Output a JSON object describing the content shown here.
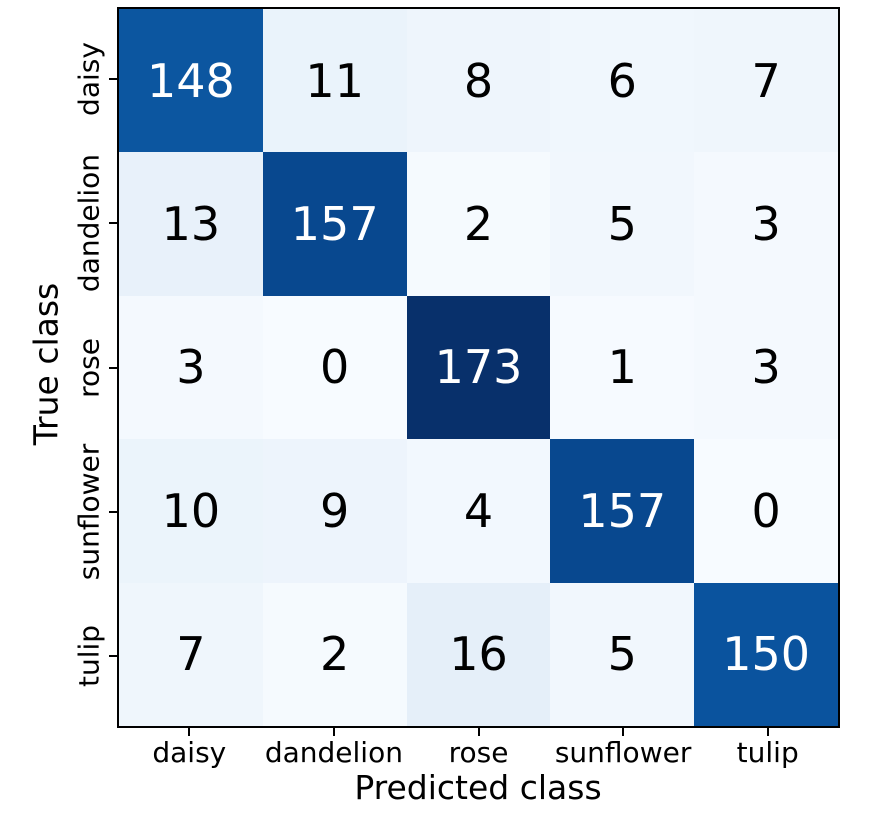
{
  "figure": {
    "background": "#ffffff",
    "axis_color": "#000000"
  },
  "chart_data": {
    "type": "heatmap",
    "title": "",
    "xlabel": "Predicted class",
    "ylabel": "True class",
    "categories": [
      "daisy",
      "dandelion",
      "rose",
      "sunflower",
      "tulip"
    ],
    "rows": [
      [
        148,
        11,
        8,
        6,
        7
      ],
      [
        13,
        157,
        2,
        5,
        3
      ],
      [
        3,
        0,
        173,
        1,
        3
      ],
      [
        10,
        9,
        4,
        157,
        0
      ],
      [
        7,
        2,
        16,
        5,
        150
      ]
    ],
    "vmin": 0,
    "vmax": 173,
    "colormap": "Blues",
    "colormap_anchors": [
      [
        0.0,
        "#f7fbff"
      ],
      [
        0.125,
        "#deebf7"
      ],
      [
        0.25,
        "#c6dbef"
      ],
      [
        0.375,
        "#9ecae1"
      ],
      [
        0.5,
        "#6baed6"
      ],
      [
        0.625,
        "#4292c6"
      ],
      [
        0.75,
        "#2171b5"
      ],
      [
        0.875,
        "#08519c"
      ],
      [
        1.0,
        "#08306b"
      ]
    ],
    "cell_text_light": "#ffffff",
    "cell_text_dark": "#000000",
    "legend_position": "none",
    "grid": false
  }
}
